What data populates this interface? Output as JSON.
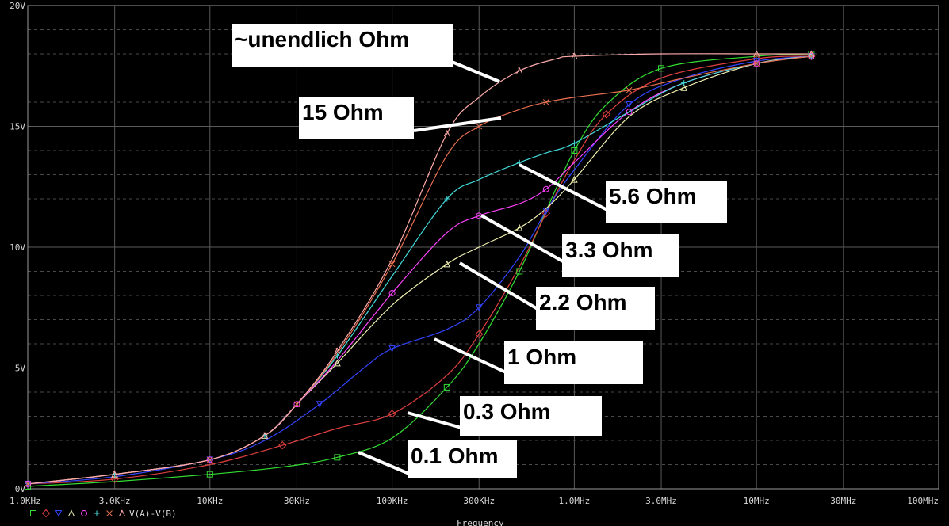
{
  "chart_data": {
    "type": "line",
    "xlabel": "Frequency",
    "ylabel": "",
    "x_scale": "log",
    "xlim": [
      1000,
      100000000
    ],
    "ylim": [
      0,
      20
    ],
    "grid": true,
    "x_ticks": [
      {
        "value": 1000,
        "label": "1.0KHz"
      },
      {
        "value": 3000,
        "label": "3.0KHz"
      },
      {
        "value": 10000,
        "label": "10KHz"
      },
      {
        "value": 30000,
        "label": "30KHz"
      },
      {
        "value": 100000,
        "label": "100KHz"
      },
      {
        "value": 300000,
        "label": "300KHz"
      },
      {
        "value": 1000000,
        "label": "1.0MHz"
      },
      {
        "value": 3000000,
        "label": "3.0MHz"
      },
      {
        "value": 10000000,
        "label": "10MHz"
      },
      {
        "value": 30000000,
        "label": "30MHz"
      },
      {
        "value": 100000000,
        "label": "100MHz"
      }
    ],
    "y_ticks": [
      {
        "value": 0,
        "label": "0V"
      },
      {
        "value": 5,
        "label": "5V"
      },
      {
        "value": 10,
        "label": "10V"
      },
      {
        "value": 15,
        "label": "15V"
      },
      {
        "value": 20,
        "label": "20V"
      }
    ],
    "legend": {
      "placement": "bottom-left",
      "trace_expression": "V(A)-V(B)"
    },
    "series": [
      {
        "name": "0.1 Ohm",
        "color": "#33dd33",
        "marker": "square",
        "x": [
          1000,
          3000,
          10000,
          25000,
          50000,
          100000,
          200000,
          300000,
          500000,
          700000,
          1000000,
          1500000,
          3000000,
          10000000,
          20000000
        ],
        "y": [
          0.1,
          0.3,
          0.6,
          0.9,
          1.3,
          2.1,
          4.2,
          6.0,
          9.0,
          11.5,
          14.0,
          15.9,
          17.4,
          17.9,
          18.0
        ]
      },
      {
        "name": "0.3 Ohm",
        "color": "#e04040",
        "marker": "diamond",
        "x": [
          1000,
          3000,
          10000,
          25000,
          50000,
          100000,
          200000,
          300000,
          500000,
          700000,
          1000000,
          1500000,
          3000000,
          10000000,
          20000000
        ],
        "y": [
          0.2,
          0.4,
          1.0,
          1.8,
          2.5,
          3.1,
          4.7,
          6.4,
          9.2,
          11.4,
          13.6,
          15.5,
          17.0,
          17.8,
          17.9
        ]
      },
      {
        "name": "1 Ohm",
        "color": "#3344ff",
        "marker": "triangle-down",
        "x": [
          1000,
          3000,
          10000,
          20000,
          40000,
          70000,
          100000,
          200000,
          300000,
          500000,
          700000,
          1000000,
          2000000,
          4000000,
          10000000,
          20000000
        ],
        "y": [
          0.2,
          0.5,
          1.2,
          2.0,
          3.5,
          5.0,
          5.8,
          6.6,
          7.5,
          9.6,
          11.5,
          13.2,
          15.9,
          17.0,
          17.7,
          17.9
        ]
      },
      {
        "name": "2.2 Ohm",
        "color": "#f0f0b0",
        "marker": "triangle-up",
        "x": [
          1000,
          3000,
          10000,
          20000,
          30000,
          50000,
          100000,
          200000,
          300000,
          500000,
          700000,
          1000000,
          2000000,
          4000000,
          10000000,
          20000000
        ],
        "y": [
          0.2,
          0.6,
          1.2,
          2.2,
          3.5,
          5.2,
          7.6,
          9.3,
          10.0,
          10.8,
          11.6,
          12.8,
          15.4,
          16.6,
          17.6,
          17.9
        ]
      },
      {
        "name": "3.3 Ohm",
        "color": "#ff44ff",
        "marker": "circle",
        "x": [
          1000,
          3000,
          10000,
          20000,
          30000,
          50000,
          100000,
          200000,
          300000,
          500000,
          700000,
          1000000,
          2000000,
          4000000,
          10000000,
          20000000
        ],
        "y": [
          0.2,
          0.6,
          1.2,
          2.2,
          3.5,
          5.3,
          8.1,
          10.6,
          11.3,
          11.8,
          12.4,
          13.5,
          15.6,
          16.8,
          17.6,
          17.9
        ]
      },
      {
        "name": "5.6 Ohm",
        "color": "#44dddd",
        "marker": "plus",
        "x": [
          1000,
          3000,
          10000,
          20000,
          30000,
          50000,
          100000,
          200000,
          300000,
          500000,
          700000,
          1000000,
          2000000,
          4000000,
          10000000,
          20000000
        ],
        "y": [
          0.2,
          0.6,
          1.2,
          2.2,
          3.5,
          5.5,
          8.8,
          12.0,
          12.8,
          13.5,
          13.9,
          14.3,
          15.6,
          16.8,
          17.6,
          17.9
        ]
      },
      {
        "name": "15 Ohm",
        "color": "#e87050",
        "marker": "x",
        "x": [
          1000,
          3000,
          10000,
          20000,
          30000,
          50000,
          100000,
          200000,
          300000,
          500000,
          700000,
          1000000,
          2000000,
          4000000,
          10000000,
          20000000
        ],
        "y": [
          0.2,
          0.6,
          1.2,
          2.2,
          3.5,
          5.6,
          9.3,
          13.8,
          15.0,
          15.7,
          16.0,
          16.2,
          16.5,
          17.0,
          17.6,
          17.9
        ]
      },
      {
        "name": "~unendlich Ohm",
        "color": "#ffaaaa",
        "marker": "lambda",
        "x": [
          1000,
          3000,
          10000,
          20000,
          30000,
          50000,
          100000,
          200000,
          300000,
          500000,
          800000,
          1000000,
          3000000,
          10000000,
          20000000
        ],
        "y": [
          0.2,
          0.6,
          1.2,
          2.2,
          3.5,
          5.7,
          9.5,
          14.7,
          16.2,
          17.3,
          17.8,
          17.9,
          18.0,
          18.0,
          18.0
        ]
      }
    ],
    "annotations": [
      {
        "text": "~unendlich Ohm",
        "series": "~unendlich Ohm"
      },
      {
        "text": "15 Ohm",
        "series": "15 Ohm"
      },
      {
        "text": "5.6 Ohm",
        "series": "5.6 Ohm"
      },
      {
        "text": "3.3 Ohm",
        "series": "3.3 Ohm"
      },
      {
        "text": "2.2 Ohm",
        "series": "2.2 Ohm"
      },
      {
        "text": "1 Ohm",
        "series": "1 Ohm"
      },
      {
        "text": "0.3 Ohm",
        "series": "0.3 Ohm"
      },
      {
        "text": "0.1 Ohm",
        "series": "0.1 Ohm"
      }
    ]
  }
}
